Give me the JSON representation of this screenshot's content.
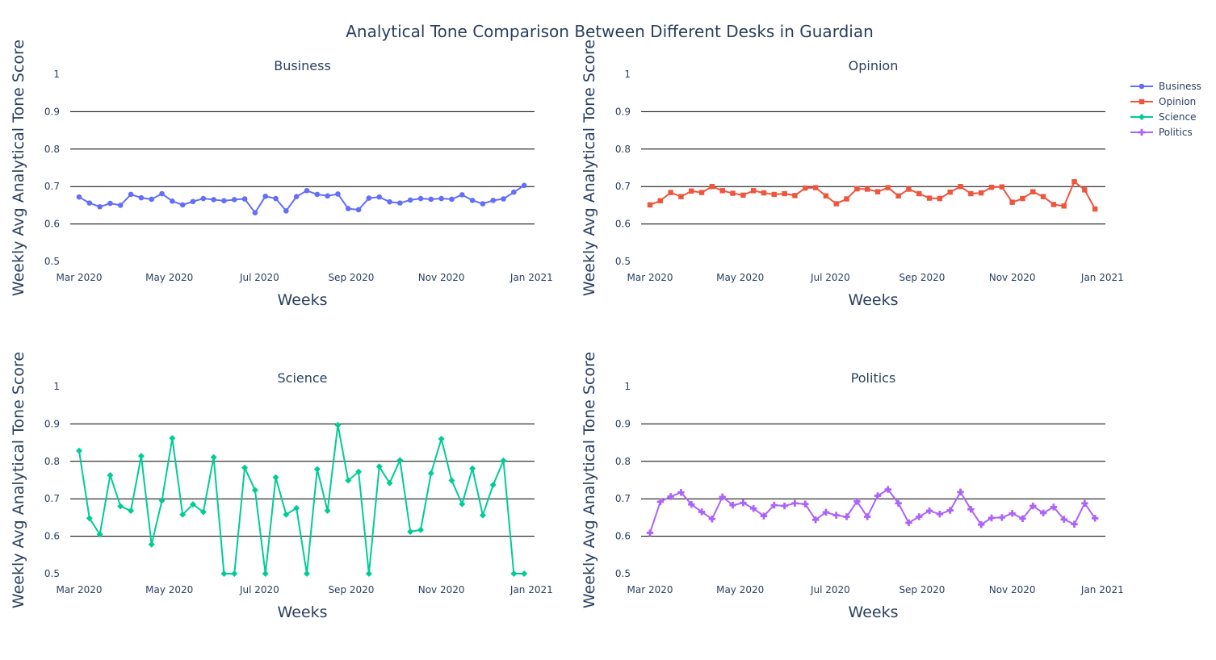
{
  "title": "Analytical Tone Comparison Between Different Desks in Guardian",
  "chart_data": {
    "type": "line",
    "title": "Analytical Tone Comparison Between Different Desks in Guardian",
    "grid": true,
    "legend_position": "top-right",
    "legend": [
      {
        "name": "Business",
        "color": "#636efa",
        "marker": "circle"
      },
      {
        "name": "Opinion",
        "color": "#ef553b",
        "marker": "square"
      },
      {
        "name": "Science",
        "color": "#00cc96",
        "marker": "diamond"
      },
      {
        "name": "Politics",
        "color": "#ab63fa",
        "marker": "cross"
      }
    ],
    "shared_axes": {
      "xlabel": "Weeks",
      "ylabel": "Weekly Avg Analytical Tone Score",
      "ylim": [
        0.5,
        1.0
      ],
      "y_ticks": [
        0.5,
        0.6,
        0.7,
        0.8,
        0.9,
        1
      ],
      "x_ticks": [
        "2020-03-01",
        "2020-05-01",
        "2020-07-01",
        "2020-09-01",
        "2020-11-01",
        "2021-01-01"
      ],
      "x_tick_labels": [
        "Mar 2020",
        "May 2020",
        "Jul 2020",
        "Sep 2020",
        "Nov 2020",
        "Jan 2021"
      ],
      "xlim": [
        "2020-02-24",
        "2021-01-03"
      ]
    },
    "panels": [
      {
        "subtitle": "Business",
        "series": {
          "name": "Business",
          "color": "#636efa",
          "marker": "circle",
          "x": [
            "2020-03-01",
            "2020-03-08",
            "2020-03-15",
            "2020-03-22",
            "2020-03-29",
            "2020-04-05",
            "2020-04-12",
            "2020-04-19",
            "2020-04-26",
            "2020-05-03",
            "2020-05-10",
            "2020-05-17",
            "2020-05-24",
            "2020-05-31",
            "2020-06-07",
            "2020-06-14",
            "2020-06-21",
            "2020-06-28",
            "2020-07-05",
            "2020-07-12",
            "2020-07-19",
            "2020-07-26",
            "2020-08-02",
            "2020-08-09",
            "2020-08-16",
            "2020-08-23",
            "2020-08-30",
            "2020-09-06",
            "2020-09-13",
            "2020-09-20",
            "2020-09-27",
            "2020-10-04",
            "2020-10-11",
            "2020-10-18",
            "2020-10-25",
            "2020-11-01",
            "2020-11-08",
            "2020-11-15",
            "2020-11-22",
            "2020-11-29",
            "2020-12-06",
            "2020-12-13",
            "2020-12-20",
            "2020-12-27"
          ],
          "y": [
            0.672,
            0.656,
            0.646,
            0.655,
            0.65,
            0.679,
            0.67,
            0.666,
            0.681,
            0.661,
            0.651,
            0.66,
            0.668,
            0.665,
            0.662,
            0.665,
            0.667,
            0.63,
            0.674,
            0.668,
            0.635,
            0.673,
            0.689,
            0.679,
            0.675,
            0.68,
            0.641,
            0.638,
            0.669,
            0.672,
            0.659,
            0.656,
            0.664,
            0.668,
            0.666,
            0.668,
            0.666,
            0.678,
            0.663,
            0.654,
            0.663,
            0.667,
            0.685,
            0.703
          ]
        }
      },
      {
        "subtitle": "Opinion",
        "series": {
          "name": "Opinion",
          "color": "#ef553b",
          "marker": "square",
          "x": [
            "2020-03-01",
            "2020-03-08",
            "2020-03-15",
            "2020-03-22",
            "2020-03-29",
            "2020-04-05",
            "2020-04-12",
            "2020-04-19",
            "2020-04-26",
            "2020-05-03",
            "2020-05-10",
            "2020-05-17",
            "2020-05-24",
            "2020-05-31",
            "2020-06-07",
            "2020-06-14",
            "2020-06-21",
            "2020-06-28",
            "2020-07-05",
            "2020-07-12",
            "2020-07-19",
            "2020-07-26",
            "2020-08-02",
            "2020-08-09",
            "2020-08-16",
            "2020-08-23",
            "2020-08-30",
            "2020-09-06",
            "2020-09-13",
            "2020-09-20",
            "2020-09-27",
            "2020-10-04",
            "2020-10-11",
            "2020-10-18",
            "2020-10-25",
            "2020-11-01",
            "2020-11-08",
            "2020-11-15",
            "2020-11-22",
            "2020-11-29",
            "2020-12-06",
            "2020-12-13",
            "2020-12-20",
            "2020-12-27"
          ],
          "y": [
            0.651,
            0.662,
            0.684,
            0.673,
            0.688,
            0.684,
            0.7,
            0.689,
            0.682,
            0.677,
            0.689,
            0.683,
            0.679,
            0.681,
            0.676,
            0.696,
            0.697,
            0.675,
            0.654,
            0.667,
            0.694,
            0.693,
            0.686,
            0.697,
            0.675,
            0.693,
            0.681,
            0.669,
            0.668,
            0.685,
            0.7,
            0.681,
            0.683,
            0.698,
            0.699,
            0.658,
            0.668,
            0.686,
            0.673,
            0.652,
            0.648,
            0.713,
            0.691,
            0.64
          ]
        }
      },
      {
        "subtitle": "Science",
        "series": {
          "name": "Science",
          "color": "#00cc96",
          "marker": "diamond",
          "x": [
            "2020-03-01",
            "2020-03-08",
            "2020-03-15",
            "2020-03-22",
            "2020-03-29",
            "2020-04-05",
            "2020-04-12",
            "2020-04-19",
            "2020-04-26",
            "2020-05-03",
            "2020-05-10",
            "2020-05-17",
            "2020-05-24",
            "2020-05-31",
            "2020-06-07",
            "2020-06-14",
            "2020-06-21",
            "2020-06-28",
            "2020-07-05",
            "2020-07-12",
            "2020-07-19",
            "2020-07-26",
            "2020-08-02",
            "2020-08-09",
            "2020-08-16",
            "2020-08-23",
            "2020-08-30",
            "2020-09-06",
            "2020-09-13",
            "2020-09-20",
            "2020-09-27",
            "2020-10-04",
            "2020-10-11",
            "2020-10-18",
            "2020-10-25",
            "2020-11-01",
            "2020-11-08",
            "2020-11-15",
            "2020-11-22",
            "2020-11-29",
            "2020-12-06",
            "2020-12-13",
            "2020-12-20",
            "2020-12-27"
          ],
          "y": [
            0.828,
            0.648,
            0.605,
            0.763,
            0.68,
            0.668,
            0.814,
            0.578,
            0.695,
            0.862,
            0.658,
            0.685,
            0.665,
            0.811,
            0.5,
            0.5,
            0.783,
            0.723,
            0.5,
            0.757,
            0.658,
            0.675,
            0.5,
            0.779,
            0.668,
            0.897,
            0.749,
            0.772,
            0.5,
            0.786,
            0.742,
            0.803,
            0.612,
            0.617,
            0.768,
            0.86,
            0.749,
            0.686,
            0.781,
            0.656,
            0.737,
            0.802,
            0.5,
            0.5
          ]
        }
      },
      {
        "subtitle": "Politics",
        "series": {
          "name": "Politics",
          "color": "#ab63fa",
          "marker": "cross",
          "x": [
            "2020-03-01",
            "2020-03-08",
            "2020-03-15",
            "2020-03-22",
            "2020-03-29",
            "2020-04-05",
            "2020-04-12",
            "2020-04-19",
            "2020-04-26",
            "2020-05-03",
            "2020-05-10",
            "2020-05-17",
            "2020-05-24",
            "2020-05-31",
            "2020-06-07",
            "2020-06-14",
            "2020-06-21",
            "2020-06-28",
            "2020-07-05",
            "2020-07-12",
            "2020-07-19",
            "2020-07-26",
            "2020-08-02",
            "2020-08-09",
            "2020-08-16",
            "2020-08-23",
            "2020-08-30",
            "2020-09-06",
            "2020-09-13",
            "2020-09-20",
            "2020-09-27",
            "2020-10-04",
            "2020-10-11",
            "2020-10-18",
            "2020-10-25",
            "2020-11-01",
            "2020-11-08",
            "2020-11-15",
            "2020-11-22",
            "2020-11-29",
            "2020-12-06",
            "2020-12-13",
            "2020-12-20",
            "2020-12-27"
          ],
          "y": [
            0.609,
            0.692,
            0.706,
            0.717,
            0.685,
            0.665,
            0.646,
            0.705,
            0.683,
            0.689,
            0.674,
            0.654,
            0.683,
            0.681,
            0.688,
            0.686,
            0.644,
            0.664,
            0.656,
            0.652,
            0.693,
            0.652,
            0.708,
            0.725,
            0.688,
            0.636,
            0.652,
            0.668,
            0.659,
            0.669,
            0.718,
            0.672,
            0.631,
            0.649,
            0.65,
            0.661,
            0.647,
            0.681,
            0.662,
            0.678,
            0.645,
            0.632,
            0.688,
            0.648
          ]
        }
      }
    ]
  }
}
